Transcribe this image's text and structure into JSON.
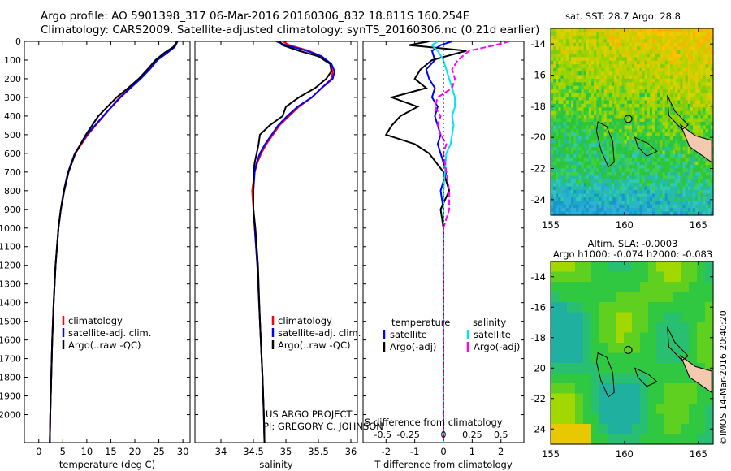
{
  "header": {
    "line1": "Argo profile: AO 5901398_317 06-Mar-2016 20160306_832 18.811S 160.254E",
    "line2": "Climatology: CARS2009. Satellite-adjusted climatology: synTS_20160306.nc (0.21d earlier)"
  },
  "side_credit": "©IMOS 14-Mar-2016 20:40:20",
  "colors": {
    "climatology": "#ff0000",
    "satellite": "#0000ff",
    "argo": "#000000",
    "salinity_satellite": "#00e5ee",
    "salinity_argo": "#ff00ff"
  },
  "chart_data": [
    {
      "type": "line",
      "xlabel": "temperature (deg C)",
      "xlim": [
        -3,
        31.5
      ],
      "xticks": [
        0,
        5,
        10,
        15,
        20,
        25,
        30
      ],
      "ylim": [
        2150,
        0
      ],
      "yticks": [
        0,
        100,
        200,
        300,
        400,
        500,
        600,
        700,
        800,
        900,
        1000,
        1100,
        1200,
        1300,
        1400,
        1500,
        1600,
        1700,
        1800,
        1900,
        2000
      ],
      "legend": [
        "climatology",
        "satellite-adj. clim.",
        "Argo(..raw -QC)"
      ],
      "depth": [
        0,
        30,
        60,
        100,
        150,
        200,
        250,
        300,
        400,
        500,
        600,
        700,
        800,
        900,
        1000,
        1200,
        1400,
        1600,
        1800,
        2000,
        2150
      ],
      "series": [
        {
          "name": "climatology",
          "color": "#ff0000",
          "values": [
            28.6,
            28.2,
            26.5,
            24.5,
            23.0,
            21.0,
            19.0,
            16.8,
            13.5,
            10.2,
            7.6,
            6.2,
            5.3,
            4.6,
            4.1,
            3.5,
            3.1,
            2.8,
            2.6,
            2.4,
            2.3
          ]
        },
        {
          "name": "satellite-adj. clim.",
          "color": "#0000ff",
          "values": [
            28.9,
            28.3,
            26.8,
            24.7,
            23.1,
            21.2,
            19.1,
            17.0,
            13.4,
            10.0,
            7.5,
            6.1,
            5.2,
            4.6,
            4.1,
            3.5,
            3.1,
            2.8,
            2.6,
            2.4,
            2.3
          ]
        },
        {
          "name": "Argo(..raw -QC)",
          "color": "#000000",
          "values": [
            28.8,
            28.0,
            26.2,
            24.3,
            22.6,
            20.8,
            18.6,
            16.2,
            12.4,
            9.8,
            7.6,
            6.2,
            5.3,
            4.6,
            4.1,
            3.5,
            3.1,
            2.8,
            2.6,
            2.4,
            2.3
          ]
        }
      ]
    },
    {
      "type": "line",
      "xlabel": "salinity",
      "xlim": [
        33.6,
        36.1
      ],
      "xticks": [
        34,
        34.5,
        35,
        35.5,
        36
      ],
      "ylim": [
        2150,
        0
      ],
      "legend": [
        "climatology",
        "satellite-adj. clim.",
        "Argo(..raw -QC)"
      ],
      "annotations": [
        "US ARGO PROJECT",
        "PI: GREGORY C. JOHNSON"
      ],
      "depth": [
        0,
        20,
        50,
        80,
        120,
        160,
        200,
        250,
        300,
        350,
        400,
        450,
        500,
        550,
        600,
        650,
        700,
        800,
        900,
        1000,
        1200,
        1500,
        1800,
        2000,
        2150
      ],
      "series": [
        {
          "name": "climatology",
          "color": "#ff0000",
          "values": [
            34.95,
            35.05,
            35.35,
            35.55,
            35.68,
            35.72,
            35.7,
            35.55,
            35.4,
            35.2,
            35.05,
            34.9,
            34.8,
            34.7,
            34.62,
            34.56,
            34.52,
            34.48,
            34.5,
            34.52,
            34.56,
            34.6,
            34.64,
            34.66,
            34.67
          ]
        },
        {
          "name": "satellite-adj. clim.",
          "color": "#0000ff",
          "values": [
            34.85,
            35.0,
            35.32,
            35.55,
            35.7,
            35.75,
            35.72,
            35.55,
            35.4,
            35.18,
            35.02,
            34.88,
            34.78,
            34.68,
            34.6,
            34.55,
            34.52,
            34.5,
            34.5,
            34.52,
            34.56,
            34.6,
            34.64,
            34.66,
            34.67
          ]
        },
        {
          "name": "Argo(..raw -QC)",
          "color": "#000000",
          "values": [
            34.9,
            34.95,
            35.2,
            35.5,
            35.68,
            35.7,
            35.62,
            35.45,
            35.2,
            35.0,
            34.95,
            34.75,
            34.6,
            34.58,
            34.55,
            34.52,
            34.5,
            34.5,
            34.5,
            34.53,
            34.57,
            34.6,
            34.64,
            34.66,
            34.67
          ]
        }
      ]
    },
    {
      "type": "line",
      "xlabel": "T difference from climatology",
      "xlabel_top": "S difference from climatology",
      "xlim": [
        -2.8,
        2.8
      ],
      "xticks": [
        -2,
        -1,
        0,
        1,
        2
      ],
      "xticks_salinity": [
        "-0.5",
        "-0.25",
        "0",
        "0.25",
        "0.5"
      ],
      "ylim": [
        2150,
        0
      ],
      "legend_titles": [
        "temperature",
        "salinity"
      ],
      "legend": [
        "satellite",
        "Argo(-adj)",
        "satellite",
        "Argo(-adj)"
      ],
      "depth": [
        0,
        20,
        50,
        100,
        150,
        200,
        250,
        300,
        350,
        400,
        450,
        500,
        550,
        600,
        700,
        800,
        900,
        1000,
        1200,
        1500,
        1800,
        2000,
        2150
      ],
      "series": [
        {
          "name": "temperature satellite",
          "color": "#0000ff",
          "values": [
            0.3,
            -0.1,
            -0.4,
            -0.3,
            -0.6,
            -0.5,
            -0.3,
            -0.4,
            -0.2,
            -0.3,
            -0.2,
            -0.1,
            -0.2,
            -0.1,
            0.1,
            -0.1,
            0.0,
            0.0,
            0.0,
            0.0,
            0.0,
            0.0,
            0.0
          ]
        },
        {
          "name": "temperature Argo(-adj)",
          "color": "#000000",
          "values": [
            -0.5,
            -1.2,
            0.8,
            -0.4,
            -0.8,
            -1.0,
            -0.6,
            -1.8,
            -0.9,
            -1.5,
            -1.8,
            -2.0,
            -1.0,
            -0.5,
            0.0,
            0.2,
            -0.1,
            0.0,
            0.0,
            0.0,
            0.0,
            0.0,
            0.0
          ]
        },
        {
          "name": "salinity satellite",
          "color": "#00e5ee",
          "values": [
            -0.2,
            -0.4,
            -0.2,
            0.0,
            0.1,
            0.2,
            0.3,
            0.4,
            0.4,
            0.3,
            0.35,
            0.3,
            0.25,
            0.1,
            0.05,
            0.0,
            0.0,
            0.0,
            0.0,
            0.0,
            0.0,
            0.0,
            0.0
          ]
        },
        {
          "name": "salinity Argo(-adj)",
          "color": "#ff00ff",
          "values": [
            2.3,
            1.8,
            0.9,
            0.5,
            0.3,
            0.4,
            0.3,
            -0.2,
            -0.3,
            -0.1,
            -0.2,
            -0.1,
            0.1,
            0.0,
            0.1,
            0.2,
            0.2,
            0.0,
            0.0,
            0.0,
            0.0,
            0.0,
            0.0
          ]
        }
      ]
    },
    {
      "type": "heatmap",
      "title": "sat. SST: 28.7 Argo: 28.8",
      "xlim": [
        155,
        166
      ],
      "xticks": [
        155,
        160,
        165
      ],
      "ylim": [
        -25,
        -13
      ],
      "yticks": [
        -14,
        -16,
        -18,
        -20,
        -22,
        -24
      ],
      "marker": {
        "lon": 160.254,
        "lat": -18.811
      }
    },
    {
      "type": "heatmap",
      "title": "Altim. SLA: -0.0003",
      "subtitle": "Argo h1000: -0.074 h2000: -0.083",
      "xlim": [
        155,
        166
      ],
      "xticks": [
        155,
        160,
        165
      ],
      "ylim": [
        -25,
        -13
      ],
      "yticks": [
        -14,
        -16,
        -18,
        -20,
        -22,
        -24
      ],
      "marker": {
        "lon": 160.254,
        "lat": -18.811
      }
    }
  ]
}
